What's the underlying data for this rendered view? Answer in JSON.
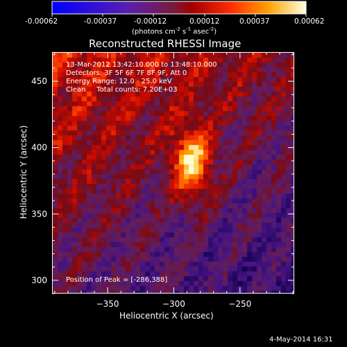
{
  "colorbar": {
    "tick_labels": [
      "-0.00062",
      "-0.00037",
      "-0.00012",
      "0.00012",
      "0.00037",
      "0.00062"
    ],
    "units": "(photons cm",
    "units_exp1": "-2",
    "units_mid": " s",
    "units_exp2": "-1",
    "units_end": " asec",
    "units_exp3": "-2",
    "units_close": ")"
  },
  "chart_data": {
    "type": "heatmap",
    "title": "Reconstructed RHESSI Image",
    "xlabel": "Heliocentric X (arcsec)",
    "ylabel": "Heliocentric Y (arcsec)",
    "xlim": [
      -392,
      -209
    ],
    "ylim": [
      290,
      472
    ],
    "x_ticks": [
      -350,
      -300,
      -250
    ],
    "y_ticks": [
      300,
      350,
      400,
      450
    ],
    "color_range": [
      -0.00062,
      0.00062
    ],
    "peak": [
      -286,
      388
    ]
  },
  "annotations": {
    "line1": "13-Mar-2012 13:42:10.000 to 13:48:10.000",
    "line2": "Detectors: 3F 5F 6F 7F 8F 9F, Att 0",
    "line3": "Energy Range: 12.0 - 25.0 keV",
    "line4": "Clean     Total counts: 7.20E+03",
    "peak_label": "Position of Peak = [-286,388]"
  },
  "footer_date": "4-May-2014 16:31",
  "colors": {
    "background": "#000000",
    "text": "#ffffff"
  }
}
